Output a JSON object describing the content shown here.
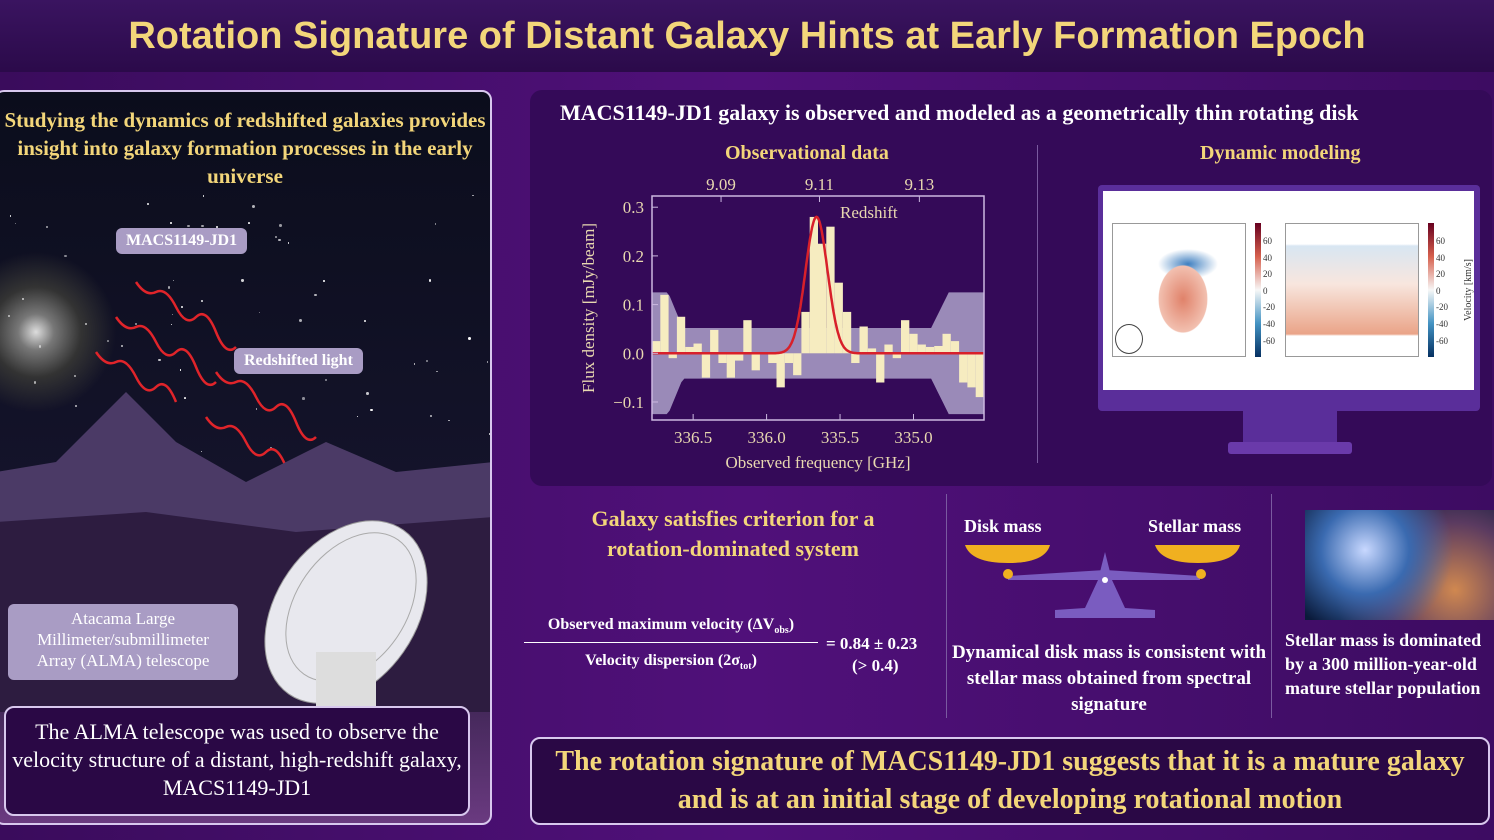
{
  "title": "Rotation Signature of Distant Galaxy Hints at Early Formation Epoch",
  "left": {
    "intro": "Studying the dynamics of redshifted galaxies provides insight into galaxy formation processes in the early universe",
    "galaxy_label": "MACS1149-JD1",
    "light_label": "Redshifted light",
    "telescope_label": "Atacama Large Millimeter/submillimeter Array (ALMA) telescope",
    "summary": "The ALMA telescope was used to observe the velocity structure of a distant, high-redshift galaxy, MACS1149-JD1"
  },
  "top_right": {
    "heading": "MACS1149-JD1 galaxy is observed and modeled as a geometrically thin rotating disk",
    "obs_title": "Observational data",
    "model_title": "Dynamic modeling",
    "colorbar_ticks": [
      "60",
      "40",
      "20",
      "0",
      "-20",
      "-40",
      "-60"
    ],
    "colorbar_label": "Velocity [km/s]"
  },
  "chart_data": {
    "type": "bar",
    "title": "Observational data",
    "xlabel": "Observed frequency [GHz]",
    "ylabel": "Flux density [mJy/beam]",
    "xlim": [
      336.78,
      334.52
    ],
    "ylim": [
      -0.137,
      0.323
    ],
    "xticks": [
      "336.5",
      "336.0",
      "335.5",
      "335.0"
    ],
    "xtick_values": [
      336.5,
      336.0,
      335.5,
      335.0
    ],
    "yticks": [
      "0.3",
      "0.2",
      "0.1",
      "0.0",
      "−0.1"
    ],
    "ytick_values": [
      0.3,
      0.2,
      0.1,
      0.0,
      -0.1
    ],
    "top_axis_label": "Redshift",
    "top_ticks": [
      "9.09",
      "9.11",
      "9.13"
    ],
    "top_tick_freqs": [
      336.31,
      335.64,
      334.96
    ],
    "bin_start": 336.78,
    "bin_width": 0.0565,
    "values": [
      0.025,
      0.12,
      -0.01,
      0.075,
      0.013,
      0.02,
      -0.05,
      0.048,
      -0.02,
      -0.05,
      -0.015,
      0.068,
      -0.035,
      0.0,
      -0.02,
      -0.07,
      -0.02,
      -0.045,
      0.085,
      0.28,
      0.225,
      0.26,
      0.145,
      0.085,
      -0.02,
      0.055,
      0.01,
      -0.06,
      0.018,
      -0.01,
      0.068,
      0.04,
      0.018,
      0.013,
      0.015,
      0.04,
      0.025,
      -0.06,
      -0.07,
      -0.09
    ],
    "noise_band": {
      "edge": 0.125,
      "center": 0.052
    },
    "fit": {
      "type": "gaussian",
      "peak": 0.28,
      "center": 335.66,
      "sigma": 0.075
    }
  },
  "bottom": {
    "criterion_title": "Galaxy satisfies criterion for a rotation-dominated system",
    "numerator": "Observed maximum velocity (ΔV",
    "num_sub": "obs",
    "denominator": "Velocity dispersion (2σ",
    "den_sub": "tot",
    "close": ")",
    "result": "= 0.84 ± 0.23",
    "threshold": "(> 0.4)",
    "disk_mass": "Disk mass",
    "stellar_mass": "Stellar mass",
    "mass_text": "Dynamical disk mass is consistent with stellar mass obtained from spectral signature",
    "stellar_text": "Stellar mass is dominated by a 300 million-year-old mature stellar population"
  },
  "conclusion": "The rotation signature of MACS1149-JD1 suggests that it is a mature galaxy and is at an initial stage of developing rotational motion"
}
